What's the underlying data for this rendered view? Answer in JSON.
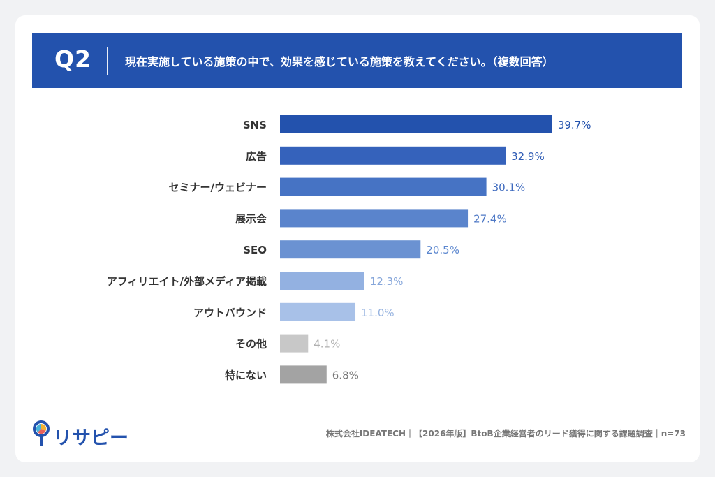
{
  "header": {
    "question_number": "Q2",
    "question_text": "現在実施している施策の中で、効果を感じている施策を教えてください。（複数回答）"
  },
  "chart_data": {
    "type": "bar",
    "orientation": "horizontal",
    "categories": [
      "SNS",
      "広告",
      "セミナー/ウェビナー",
      "展示会",
      "SEO",
      "アフィリエイト/外部メディア掲載",
      "アウトバウンド",
      "その他",
      "特にない"
    ],
    "values": [
      39.7,
      32.9,
      30.1,
      27.4,
      20.5,
      12.3,
      11.0,
      4.1,
      6.8
    ],
    "value_labels": [
      "39.7%",
      "32.9%",
      "30.1%",
      "27.4%",
      "20.5%",
      "12.3%",
      "11.0%",
      "4.1%",
      "6.8%"
    ],
    "bar_colors": [
      "#2352ad",
      "#3562bb",
      "#4673c4",
      "#5a84cc",
      "#6b92d2",
      "#93b1e1",
      "#a8c1e8",
      "#c8c8c8",
      "#a3a3a3"
    ],
    "label_colors": [
      "#2352ad",
      "#2f5cb5",
      "#3f6bbf",
      "#4f79c6",
      "#5c87cf",
      "#86a6da",
      "#98b4e0",
      "#b0b0b0",
      "#777777"
    ],
    "xlim": [
      0,
      100
    ],
    "grid": false,
    "legend": "none"
  },
  "logo": {
    "text": "リサピー"
  },
  "footer": {
    "text": "株式会社IDEATECH｜【2026年版】BtoB企業経営者のリード獲得に関する課題調査｜n=73"
  }
}
